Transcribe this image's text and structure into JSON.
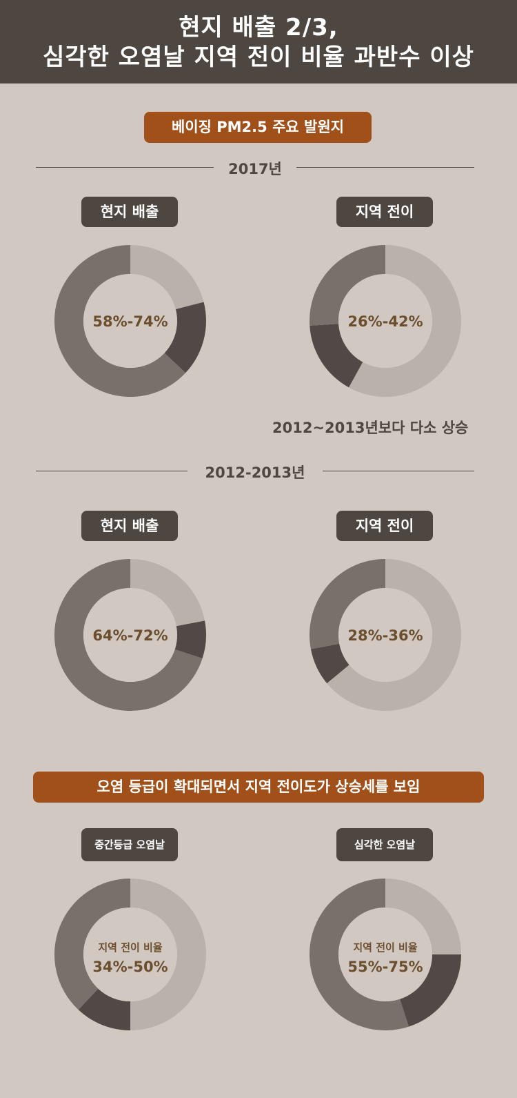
{
  "header": {
    "line1": "현지 배출 2/3,",
    "line2": "심각한 오염날 지역 전이 비율 과반수 이상"
  },
  "banner_top": "베이징 PM2.5 주요 발원지",
  "banner_bottom": "오염 등급이 확대되면서 지역 전이도가 상승세를 보임",
  "note": "2012~2013년보다 다소 상승",
  "colors": {
    "light": "#bab1aa",
    "mid": "#7a706b",
    "dark": "#514945",
    "center_text": "#6b4e2e"
  },
  "chart_data": [
    {
      "type": "pie",
      "title": "",
      "group": "2017년",
      "label": "현지 배출",
      "center": "58%-74%",
      "slices": [
        {
          "color": "light",
          "value": 0.21
        },
        {
          "color": "dark",
          "value": 0.16
        },
        {
          "color": "mid",
          "value": 0.63
        }
      ]
    },
    {
      "type": "pie",
      "title": "",
      "group": "2017년",
      "label": "지역 전이",
      "center": "26%-42%",
      "slices": [
        {
          "color": "light",
          "value": 0.58
        },
        {
          "color": "dark",
          "value": 0.16
        },
        {
          "color": "mid",
          "value": 0.26
        }
      ]
    },
    {
      "type": "pie",
      "title": "",
      "group": "2012-2013년",
      "label": "현지 배출",
      "center": "64%-72%",
      "slices": [
        {
          "color": "light",
          "value": 0.22
        },
        {
          "color": "dark",
          "value": 0.08
        },
        {
          "color": "mid",
          "value": 0.7
        }
      ]
    },
    {
      "type": "pie",
      "title": "",
      "group": "2012-2013년",
      "label": "지역 전이",
      "center": "28%-36%",
      "slices": [
        {
          "color": "light",
          "value": 0.64
        },
        {
          "color": "dark",
          "value": 0.08
        },
        {
          "color": "mid",
          "value": 0.28
        }
      ]
    },
    {
      "type": "pie",
      "title": "",
      "label": "중간등급 오염날",
      "center_label": "지역 전이 비율",
      "center": "34%-50%",
      "slices": [
        {
          "color": "light",
          "value": 0.5
        },
        {
          "color": "dark",
          "value": 0.12
        },
        {
          "color": "mid",
          "value": 0.38
        }
      ]
    },
    {
      "type": "pie",
      "title": "",
      "label": "심각한 오염날",
      "center_label": "지역 전이 비율",
      "center": "55%-75%",
      "slices": [
        {
          "color": "light",
          "value": 0.25
        },
        {
          "color": "dark",
          "value": 0.2
        },
        {
          "color": "mid",
          "value": 0.55
        }
      ]
    }
  ]
}
